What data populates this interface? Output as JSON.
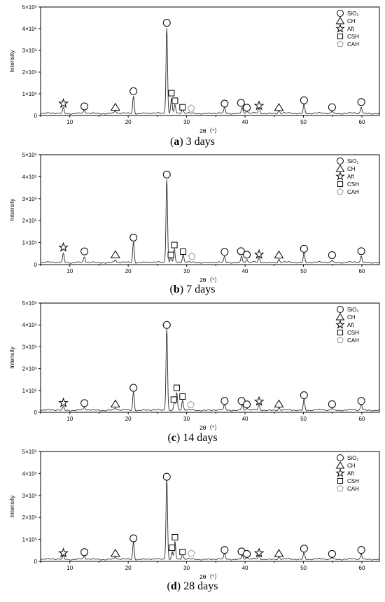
{
  "chart_data": [
    {
      "type": "line",
      "caption_letter": "a",
      "caption_text": "3 days",
      "xlabel": "2θ（°）",
      "ylabel": "Intensity",
      "xlim": [
        5,
        63
      ],
      "ylim": [
        0,
        500000
      ],
      "xticks": [
        10,
        20,
        30,
        40,
        50,
        60
      ],
      "yticks": [
        {
          "value": 0,
          "label": "0"
        },
        {
          "value": 100000,
          "label": "1×10⁵"
        },
        {
          "value": 200000,
          "label": "2×10⁵"
        },
        {
          "value": 300000,
          "label": "3×10⁵"
        },
        {
          "value": 400000,
          "label": "4×10⁵"
        },
        {
          "value": 500000,
          "label": "5×10⁵"
        }
      ],
      "legend": {
        "position": "top-right",
        "entries": [
          "SiO₂",
          "CH",
          "Aft",
          "CSH",
          "CAH"
        ]
      },
      "peaks": [
        {
          "x": 8.9,
          "y": 25000
        },
        {
          "x": 12.5,
          "y": 15000
        },
        {
          "x": 17.8,
          "y": 12000
        },
        {
          "x": 20.9,
          "y": 80000
        },
        {
          "x": 26.6,
          "y": 395000
        },
        {
          "x": 27.4,
          "y": 70000
        },
        {
          "x": 28.0,
          "y": 40000
        },
        {
          "x": 29.3,
          "y": 25000
        },
        {
          "x": 36.5,
          "y": 25000
        },
        {
          "x": 39.5,
          "y": 30000
        },
        {
          "x": 40.3,
          "y": 15000
        },
        {
          "x": 42.4,
          "y": 25000
        },
        {
          "x": 45.8,
          "y": 15000
        },
        {
          "x": 50.1,
          "y": 45000
        },
        {
          "x": 54.9,
          "y": 12000
        },
        {
          "x": 59.9,
          "y": 30000
        }
      ],
      "markers": [
        {
          "phase": "Aft",
          "x": 8.9,
          "y": 55000
        },
        {
          "phase": "SiO2",
          "x": 12.5,
          "y": 42000
        },
        {
          "phase": "CH",
          "x": 17.8,
          "y": 38000
        },
        {
          "phase": "SiO2",
          "x": 20.9,
          "y": 112000
        },
        {
          "phase": "SiO2",
          "x": 26.6,
          "y": 427000
        },
        {
          "phase": "CSH",
          "x": 27.4,
          "y": 103000
        },
        {
          "phase": "CSH",
          "x": 28.0,
          "y": 68000
        },
        {
          "phase": "CSH",
          "x": 29.3,
          "y": 38000
        },
        {
          "phase": "CAH",
          "x": 30.8,
          "y": 33000
        },
        {
          "phase": "SiO2",
          "x": 36.5,
          "y": 55000
        },
        {
          "phase": "SiO2",
          "x": 39.3,
          "y": 58000
        },
        {
          "phase": "SiO2",
          "x": 40.3,
          "y": 36000
        },
        {
          "phase": "Aft",
          "x": 42.4,
          "y": 45000
        },
        {
          "phase": "CH",
          "x": 45.8,
          "y": 37000
        },
        {
          "phase": "SiO2",
          "x": 50.1,
          "y": 70000
        },
        {
          "phase": "SiO2",
          "x": 54.9,
          "y": 38000
        },
        {
          "phase": "SiO2",
          "x": 59.9,
          "y": 62000
        }
      ]
    },
    {
      "type": "line",
      "caption_letter": "b",
      "caption_text": "7 days",
      "xlabel": "2θ（°）",
      "ylabel": "Intensity",
      "xlim": [
        5,
        63
      ],
      "ylim": [
        0,
        500000
      ],
      "xticks": [
        10,
        20,
        30,
        40,
        50,
        60
      ],
      "yticks": [
        {
          "value": 0,
          "label": "0"
        },
        {
          "value": 100000,
          "label": "1×10⁵"
        },
        {
          "value": 200000,
          "label": "2×10⁵"
        },
        {
          "value": 300000,
          "label": "3×10⁵"
        },
        {
          "value": 400000,
          "label": "4×10⁵"
        },
        {
          "value": 500000,
          "label": "5×10⁵"
        }
      ],
      "legend": {
        "position": "top-right",
        "entries": [
          "SiO₂",
          "CH",
          "Aft",
          "CSH",
          "CAH"
        ]
      },
      "peaks": [
        {
          "x": 8.9,
          "y": 40000
        },
        {
          "x": 12.5,
          "y": 25000
        },
        {
          "x": 17.8,
          "y": 12000
        },
        {
          "x": 20.9,
          "y": 95000
        },
        {
          "x": 26.6,
          "y": 380000
        },
        {
          "x": 27.3,
          "y": 30000
        },
        {
          "x": 27.9,
          "y": 60000
        },
        {
          "x": 29.4,
          "y": 35000
        },
        {
          "x": 36.5,
          "y": 25000
        },
        {
          "x": 39.4,
          "y": 30000
        },
        {
          "x": 40.3,
          "y": 15000
        },
        {
          "x": 42.4,
          "y": 20000
        },
        {
          "x": 45.8,
          "y": 15000
        },
        {
          "x": 50.1,
          "y": 45000
        },
        {
          "x": 54.9,
          "y": 12000
        },
        {
          "x": 59.9,
          "y": 30000
        }
      ],
      "markers": [
        {
          "phase": "Aft",
          "x": 8.9,
          "y": 78000
        },
        {
          "phase": "SiO2",
          "x": 12.5,
          "y": 60000
        },
        {
          "phase": "CH",
          "x": 17.8,
          "y": 45000
        },
        {
          "phase": "SiO2",
          "x": 20.9,
          "y": 123000
        },
        {
          "phase": "SiO2",
          "x": 26.6,
          "y": 410000
        },
        {
          "phase": "CSH",
          "x": 27.3,
          "y": 44000
        },
        {
          "phase": "CSH",
          "x": 27.9,
          "y": 89000
        },
        {
          "phase": "CSH",
          "x": 29.4,
          "y": 59000
        },
        {
          "phase": "CAH",
          "x": 30.9,
          "y": 37000
        },
        {
          "phase": "SiO2",
          "x": 36.5,
          "y": 58000
        },
        {
          "phase": "SiO2",
          "x": 39.3,
          "y": 61000
        },
        {
          "phase": "SiO2",
          "x": 40.3,
          "y": 45000
        },
        {
          "phase": "Aft",
          "x": 42.4,
          "y": 46000
        },
        {
          "phase": "CH",
          "x": 45.8,
          "y": 44000
        },
        {
          "phase": "SiO2",
          "x": 50.1,
          "y": 72000
        },
        {
          "phase": "SiO2",
          "x": 54.9,
          "y": 43000
        },
        {
          "phase": "SiO2",
          "x": 59.9,
          "y": 61000
        }
      ]
    },
    {
      "type": "line",
      "caption_letter": "c",
      "caption_text": "14 days",
      "xlabel": "2θ（°）",
      "ylabel": "Intensity",
      "xlim": [
        5,
        63
      ],
      "ylim": [
        0,
        500000
      ],
      "xticks": [
        10,
        20,
        30,
        40,
        50,
        60
      ],
      "yticks": [
        {
          "value": 0,
          "label": "0"
        },
        {
          "value": 100000,
          "label": "1×10⁵"
        },
        {
          "value": 200000,
          "label": "2×10⁵"
        },
        {
          "value": 300000,
          "label": "3×10⁵"
        },
        {
          "value": 400000,
          "label": "4×10⁵"
        },
        {
          "value": 500000,
          "label": "5×10⁵"
        }
      ],
      "legend": {
        "position": "top-right",
        "entries": [
          "SiO₂",
          "CH",
          "Aft",
          "CSH",
          "CAH"
        ]
      },
      "peaks": [
        {
          "x": 8.9,
          "y": 15000
        },
        {
          "x": 12.5,
          "y": 12000
        },
        {
          "x": 17.8,
          "y": 10000
        },
        {
          "x": 20.9,
          "y": 85000
        },
        {
          "x": 26.6,
          "y": 375000
        },
        {
          "x": 27.9,
          "y": 35000
        },
        {
          "x": 28.3,
          "y": 80000
        },
        {
          "x": 29.3,
          "y": 45000
        },
        {
          "x": 36.5,
          "y": 25000
        },
        {
          "x": 39.5,
          "y": 30000
        },
        {
          "x": 40.3,
          "y": 12000
        },
        {
          "x": 42.4,
          "y": 25000
        },
        {
          "x": 45.8,
          "y": 12000
        },
        {
          "x": 50.1,
          "y": 50000
        },
        {
          "x": 54.9,
          "y": 10000
        },
        {
          "x": 59.9,
          "y": 30000
        }
      ],
      "markers": [
        {
          "phase": "Aft",
          "x": 8.9,
          "y": 43000
        },
        {
          "phase": "SiO2",
          "x": 12.5,
          "y": 42000
        },
        {
          "phase": "CH",
          "x": 17.8,
          "y": 38000
        },
        {
          "phase": "SiO2",
          "x": 20.9,
          "y": 112000
        },
        {
          "phase": "SiO2",
          "x": 26.6,
          "y": 400000
        },
        {
          "phase": "CSH",
          "x": 27.8,
          "y": 58000
        },
        {
          "phase": "CSH",
          "x": 28.3,
          "y": 112000
        },
        {
          "phase": "CSH",
          "x": 29.3,
          "y": 72000
        },
        {
          "phase": "CAH",
          "x": 30.7,
          "y": 35000
        },
        {
          "phase": "SiO2",
          "x": 36.5,
          "y": 52000
        },
        {
          "phase": "SiO2",
          "x": 39.4,
          "y": 52000
        },
        {
          "phase": "SiO2",
          "x": 40.3,
          "y": 36000
        },
        {
          "phase": "Aft",
          "x": 42.4,
          "y": 50000
        },
        {
          "phase": "CH",
          "x": 45.8,
          "y": 38000
        },
        {
          "phase": "SiO2",
          "x": 50.1,
          "y": 78000
        },
        {
          "phase": "SiO2",
          "x": 54.9,
          "y": 37000
        },
        {
          "phase": "SiO2",
          "x": 59.9,
          "y": 52000
        }
      ]
    },
    {
      "type": "line",
      "caption_letter": "d",
      "caption_text": "28 days",
      "xlabel": "2θ（°）",
      "ylabel": "Intensity",
      "xlim": [
        5,
        63
      ],
      "ylim": [
        0,
        500000
      ],
      "xticks": [
        10,
        20,
        30,
        40,
        50,
        60
      ],
      "yticks": [
        {
          "value": 0,
          "label": "0"
        },
        {
          "value": 100000,
          "label": "1×10⁵"
        },
        {
          "value": 200000,
          "label": "2×10⁵"
        },
        {
          "value": 300000,
          "label": "3×10⁵"
        },
        {
          "value": 400000,
          "label": "4×10⁵"
        },
        {
          "value": 500000,
          "label": "5×10⁵"
        }
      ],
      "legend": {
        "position": "top-right",
        "entries": [
          "SiO₂",
          "CH",
          "Aft",
          "CSH",
          "CAH"
        ]
      },
      "peaks": [
        {
          "x": 8.9,
          "y": 15000
        },
        {
          "x": 12.5,
          "y": 12000
        },
        {
          "x": 17.8,
          "y": 10000
        },
        {
          "x": 20.9,
          "y": 80000
        },
        {
          "x": 26.6,
          "y": 370000
        },
        {
          "x": 27.5,
          "y": 35000
        },
        {
          "x": 28.0,
          "y": 80000
        },
        {
          "x": 29.3,
          "y": 25000
        },
        {
          "x": 36.5,
          "y": 25000
        },
        {
          "x": 39.5,
          "y": 20000
        },
        {
          "x": 40.3,
          "y": 12000
        },
        {
          "x": 42.4,
          "y": 15000
        },
        {
          "x": 45.8,
          "y": 12000
        },
        {
          "x": 50.1,
          "y": 35000
        },
        {
          "x": 54.9,
          "y": 10000
        },
        {
          "x": 59.9,
          "y": 25000
        }
      ],
      "markers": [
        {
          "phase": "Aft",
          "x": 8.9,
          "y": 38000
        },
        {
          "phase": "SiO2",
          "x": 12.5,
          "y": 42000
        },
        {
          "phase": "CH",
          "x": 17.8,
          "y": 37000
        },
        {
          "phase": "SiO2",
          "x": 20.9,
          "y": 105000
        },
        {
          "phase": "SiO2",
          "x": 26.6,
          "y": 385000
        },
        {
          "phase": "CSH",
          "x": 27.5,
          "y": 62000
        },
        {
          "phase": "CSH",
          "x": 28.0,
          "y": 110000
        },
        {
          "phase": "CSH",
          "x": 29.3,
          "y": 43000
        },
        {
          "phase": "CAH",
          "x": 30.8,
          "y": 36000
        },
        {
          "phase": "SiO2",
          "x": 36.5,
          "y": 52000
        },
        {
          "phase": "SiO2",
          "x": 39.4,
          "y": 45000
        },
        {
          "phase": "SiO2",
          "x": 40.3,
          "y": 34000
        },
        {
          "phase": "Aft",
          "x": 42.4,
          "y": 38000
        },
        {
          "phase": "CH",
          "x": 45.8,
          "y": 36000
        },
        {
          "phase": "SiO2",
          "x": 50.1,
          "y": 58000
        },
        {
          "phase": "SiO2",
          "x": 54.9,
          "y": 34000
        },
        {
          "phase": "SiO2",
          "x": 59.9,
          "y": 52000
        }
      ]
    }
  ]
}
